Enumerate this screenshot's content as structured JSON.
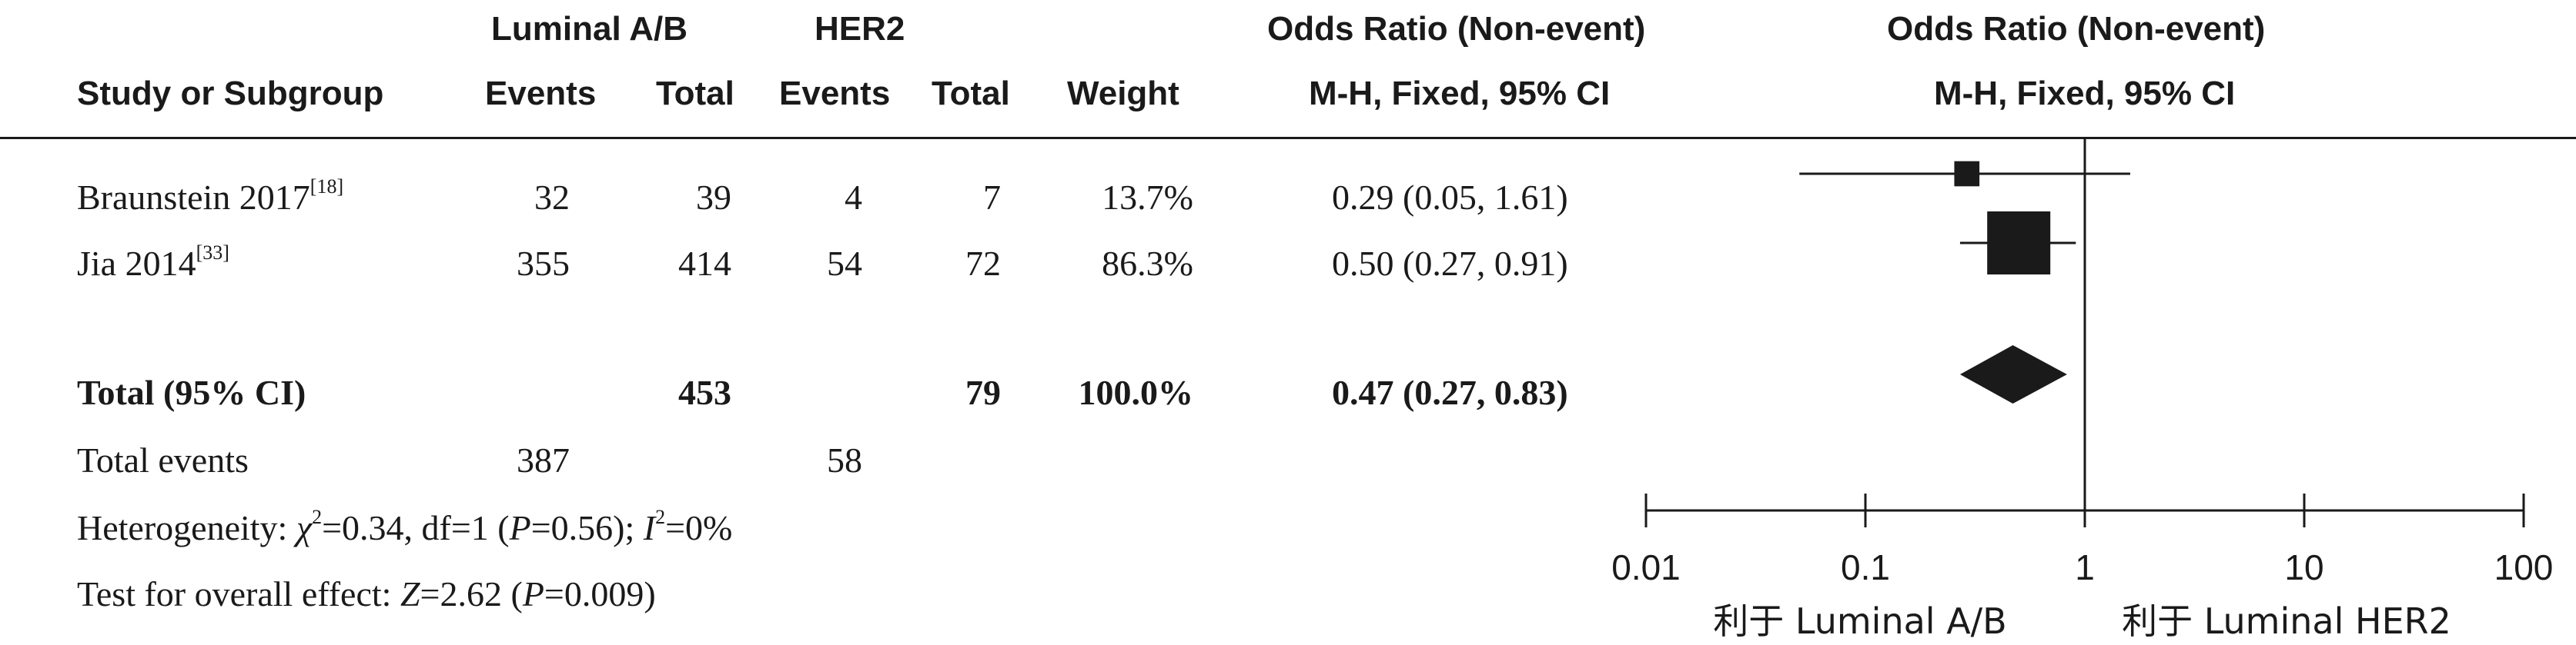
{
  "header": {
    "group1": "Luminal A/B",
    "group2": "HER2",
    "study_col": "Study or Subgroup",
    "events": "Events",
    "total": "Total",
    "weight": "Weight",
    "or_title": "Odds Ratio (Non-event)",
    "or_method": "M-H, Fixed, 95% CI",
    "plot_title": "Odds Ratio (Non-event)",
    "plot_method": "M-H, Fixed, 95% CI"
  },
  "studies": [
    {
      "name": "Braunstein 2017",
      "ref": "[18]",
      "e1": "32",
      "t1": "39",
      "e2": "4",
      "t2": "7",
      "weight": "13.7%",
      "ci": "0.29 (0.05, 1.61)"
    },
    {
      "name": "Jia 2014",
      "ref": "[33]",
      "e1": "355",
      "t1": "414",
      "e2": "54",
      "t2": "72",
      "weight": "86.3%",
      "ci": "0.50 (0.27, 0.91)"
    }
  ],
  "total": {
    "label": "Total (95% CI)",
    "t1": "453",
    "t2": "79",
    "weight": "100.0%",
    "ci": "0.47 (0.27, 0.83)"
  },
  "events": {
    "label": "Total events",
    "e1": "387",
    "e2": "58"
  },
  "heterogeneity": {
    "prefix": "Heterogeneity: ",
    "chi_symbol": "χ",
    "chi_exp": "2",
    "chi_value": "=0.34, df=1 (",
    "p_symbol": "P",
    "p_value": "=0.56); ",
    "i_symbol": "I",
    "i_exp": "2",
    "i_value": "=0%"
  },
  "overall": {
    "prefix": "Test for overall effect: ",
    "z_symbol": "Z",
    "z_value": "=2.62 (",
    "p_symbol": "P",
    "p_value": "=0.009)"
  },
  "chart_data": {
    "type": "forest",
    "scale": "log",
    "xlim": [
      0.01,
      100
    ],
    "ticks": [
      0.01,
      0.1,
      1,
      10,
      100
    ],
    "tick_labels": [
      "0.01",
      "0.1",
      "1",
      "10",
      "100"
    ],
    "null_line": 1,
    "favours_left": "利于 Luminal A/B",
    "favours_right": "利于 Luminal HER2",
    "studies": [
      {
        "name": "Braunstein 2017",
        "or": 0.29,
        "lo": 0.05,
        "hi": 1.61,
        "weight": 13.7
      },
      {
        "name": "Jia 2014",
        "or": 0.5,
        "lo": 0.27,
        "hi": 0.91,
        "weight": 86.3
      }
    ],
    "pooled": {
      "or": 0.47,
      "lo": 0.27,
      "hi": 0.83
    },
    "colors": {
      "ink": "#1a1a1a"
    }
  }
}
